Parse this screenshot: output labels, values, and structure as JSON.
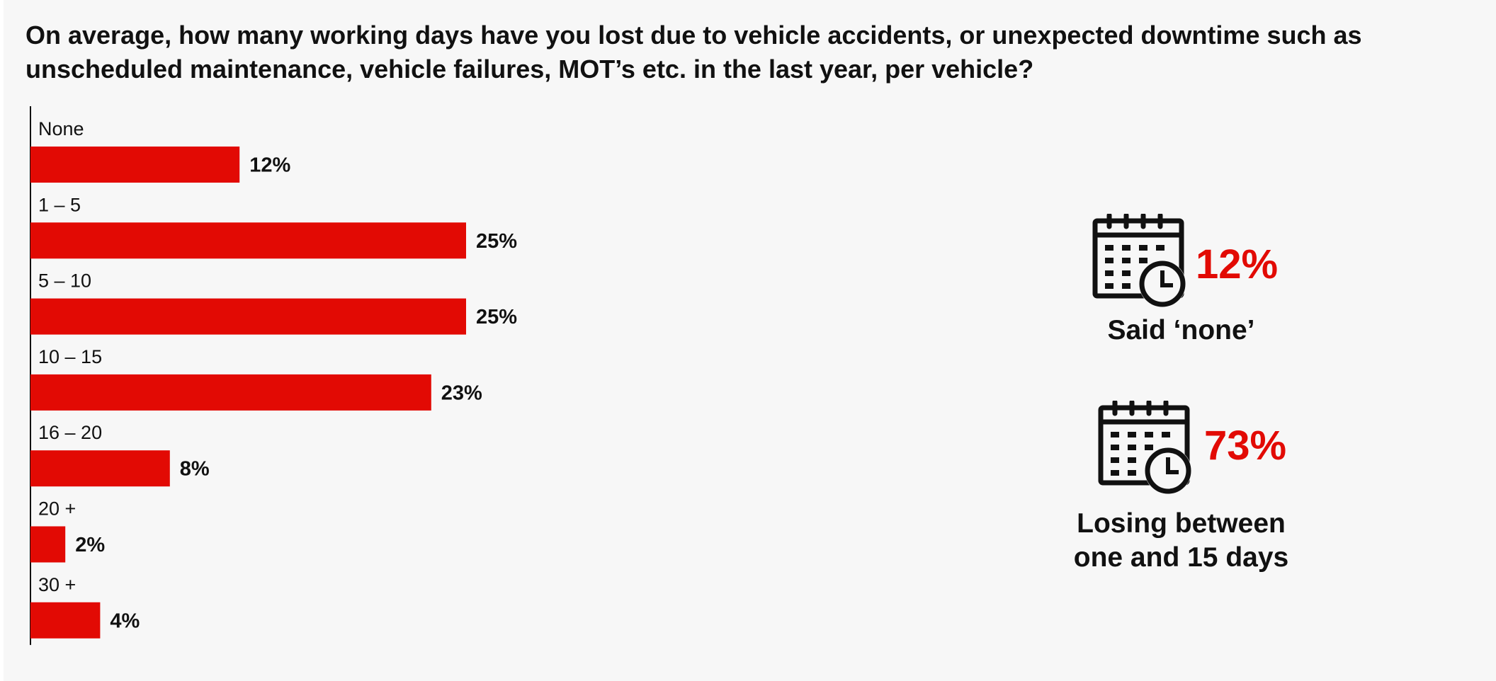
{
  "colors": {
    "accent": "#e20a04",
    "text": "#111111",
    "panel": "#f7f7f7"
  },
  "chart_data": {
    "type": "bar",
    "orientation": "horizontal",
    "title": "On average, how many working days have you lost due to vehicle accidents, or unexpected downtime such as unscheduled maintenance, vehicle failures, MOT’s etc. in the last year, per vehicle?",
    "categories": [
      "None",
      "1 – 5",
      "5 – 10",
      "10 – 15",
      "16 – 20",
      "20 +",
      "30 +"
    ],
    "values": [
      12,
      25,
      25,
      23,
      8,
      2,
      4
    ],
    "value_labels": [
      "12%",
      "25%",
      "25%",
      "23%",
      "8%",
      "2%",
      "4%"
    ],
    "unit": "%",
    "xlim": [
      0,
      100
    ],
    "grid": false,
    "legend": "none"
  },
  "stats": [
    {
      "icon": "calendar-clock-icon",
      "value": "12%",
      "caption": [
        "Said ‘none’"
      ]
    },
    {
      "icon": "calendar-clock-icon",
      "value": "73%",
      "caption": [
        "Losing between",
        "one and 15 days"
      ]
    }
  ]
}
